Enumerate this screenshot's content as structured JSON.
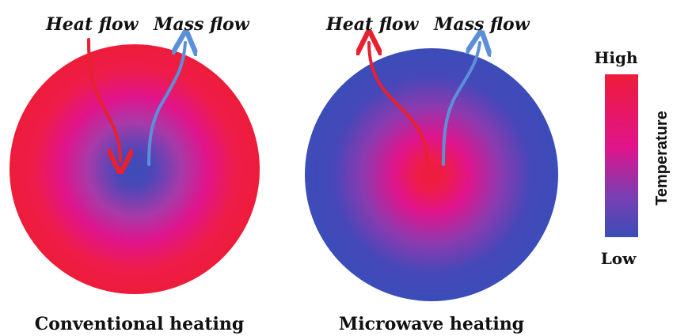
{
  "panels": [
    {
      "id": "conventional",
      "caption": "Conventional heating",
      "heat_label": "Heat flow",
      "mass_label": "Mass flow",
      "center_temperature": "low",
      "edge_temperature": "high"
    },
    {
      "id": "microwave",
      "caption": "Microwave heating",
      "heat_label": "Heat flow",
      "mass_label": "Mass flow",
      "center_temperature": "high",
      "edge_temperature": "low"
    }
  ],
  "legend": {
    "high_label": "High",
    "low_label": "Low",
    "title": "Temperature"
  },
  "colors": {
    "high": "#ee1c3a",
    "mid": "#e0148c",
    "low": "#3b4cb8",
    "heat_arrow": "#e8202f",
    "mass_arrow": "#5b8fd8"
  }
}
